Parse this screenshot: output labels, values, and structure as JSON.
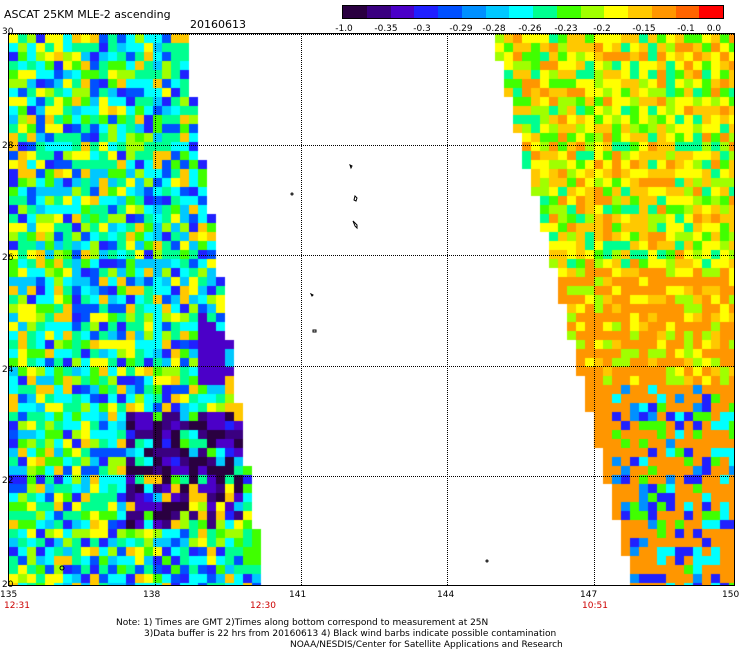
{
  "header": {
    "title": "ASCAT 25KM MLE-2 ascending",
    "date": "20160613"
  },
  "colorbar": {
    "ticks": [
      "-1.0",
      "-0.35",
      "-0.3",
      "-0.29",
      "-0.28",
      "-0.26",
      "-0.23",
      "-0.2",
      "-0.15",
      "-0.1",
      "0.0"
    ],
    "colors": [
      "#2a0040",
      "#3a0080",
      "#4b00c8",
      "#2020ff",
      "#0050ff",
      "#0090ff",
      "#00c8ff",
      "#00ffff",
      "#00ff90",
      "#40ff00",
      "#a0ff00",
      "#ffff00",
      "#ffc800",
      "#ff9600",
      "#ff6400",
      "#ff0000"
    ]
  },
  "map": {
    "lat_labels": [
      "30",
      "28",
      "26",
      "24",
      "22",
      "20"
    ],
    "lon_labels": [
      "135",
      "138",
      "141",
      "144",
      "147",
      "150"
    ],
    "time_labels": [
      "12:31",
      "12:30",
      "10:51"
    ],
    "lat_range": [
      20,
      30
    ],
    "lon_range": [
      135,
      150
    ]
  },
  "notes": {
    "line1": "Note: 1) Times are GMT 2)Times along bottom correspond to measurement at 25N",
    "line2": "3)Data buffer is 22 hrs from 20160613 4) Black wind barbs indicate possible contamination",
    "line3": "NOAA/NESDIS/Center for Satellite Applications and Research"
  }
}
